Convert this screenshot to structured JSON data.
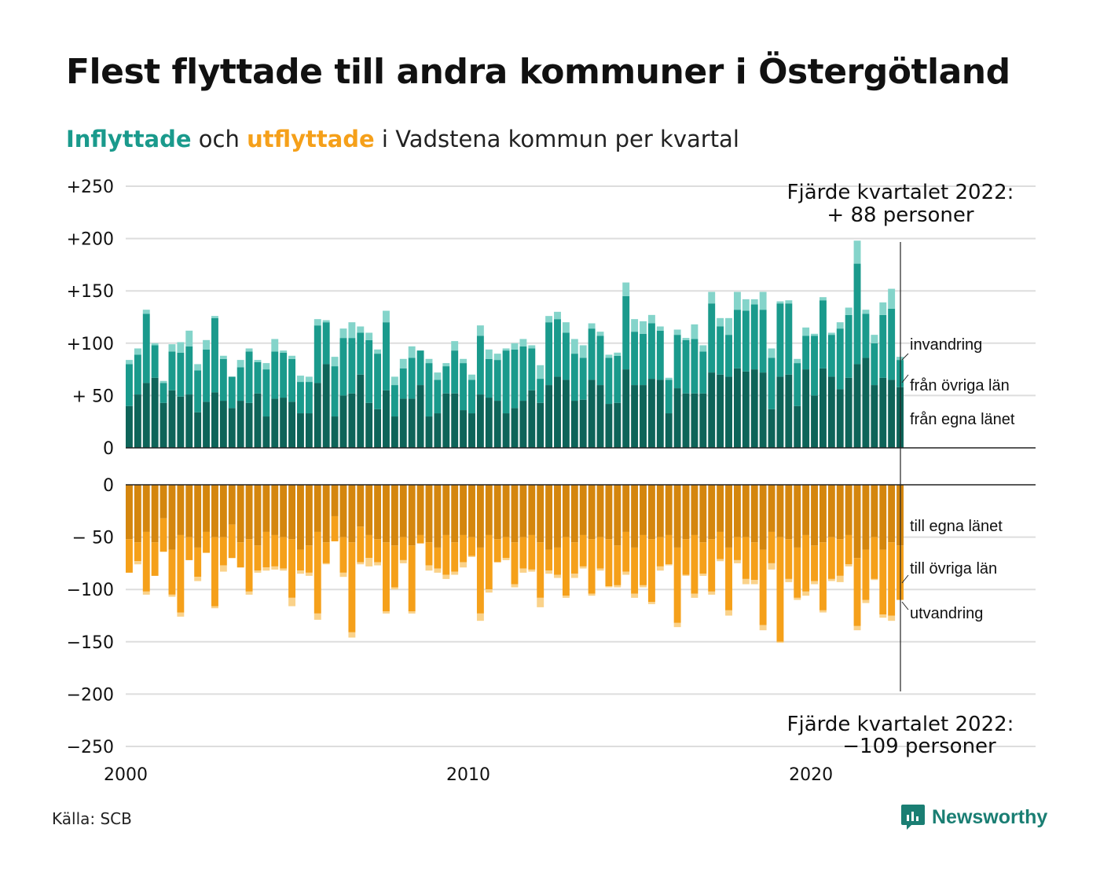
{
  "header": {
    "title": "Flest flyttade till andra kommuner i Östergötland",
    "subtitle_in": "Inflyttade",
    "subtitle_mid": " och ",
    "subtitle_out": "utflyttade",
    "subtitle_rest": " i Vadstena kommun per kvartal"
  },
  "footer": {
    "source": "Källa: SCB",
    "brand": "Newsworthy"
  },
  "colors": {
    "in_own": "#0e6459",
    "in_other": "#1a9a8c",
    "in_immigration": "#84d4ca",
    "out_own": "#d4860e",
    "out_other": "#f5a01a",
    "out_emigration": "#fad28a",
    "grid": "#dddddd",
    "brand": "#1a7e73"
  },
  "chart_data": {
    "type": "bar",
    "stacked": true,
    "x_ticks": [
      "2000",
      "2010",
      "2020"
    ],
    "x_tick_years": [
      2000,
      2010,
      2020
    ],
    "top_panel": {
      "y_ticks": [
        0,
        50,
        100,
        150,
        200,
        250
      ],
      "y_tick_labels": [
        "0",
        "+ 50",
        "+100",
        "+150",
        "+200",
        "+250"
      ],
      "ylim": [
        0,
        250
      ],
      "series": [
        {
          "name": "från egna länet",
          "values": [
            40,
            51,
            62,
            67,
            43,
            55,
            49,
            51,
            34,
            44,
            53,
            45,
            38,
            45,
            43,
            52,
            30,
            47,
            48,
            44,
            33,
            33,
            62,
            80,
            30,
            50,
            52,
            70,
            43,
            37,
            55,
            30,
            47,
            47,
            60,
            30,
            33,
            52,
            52,
            36,
            33,
            51,
            48,
            45,
            33,
            38,
            45,
            55,
            43,
            60,
            68,
            65,
            45,
            46,
            65,
            60,
            42,
            43,
            75,
            60,
            60,
            66,
            65,
            33,
            57,
            52,
            52,
            52,
            72,
            70,
            68,
            76,
            73,
            75,
            72,
            37,
            68,
            70,
            40,
            75,
            50,
            76,
            68,
            56,
            67,
            80,
            86,
            60,
            67,
            65,
            58
          ]
        },
        {
          "name": "från övriga län",
          "values": [
            40,
            38,
            66,
            31,
            19,
            37,
            42,
            46,
            40,
            50,
            71,
            40,
            30,
            32,
            49,
            30,
            45,
            45,
            43,
            41,
            30,
            30,
            55,
            40,
            48,
            55,
            53,
            40,
            60,
            53,
            65,
            30,
            29,
            39,
            33,
            51,
            32,
            26,
            41,
            45,
            32,
            56,
            37,
            39,
            60,
            56,
            52,
            40,
            23,
            60,
            55,
            45,
            45,
            40,
            49,
            47,
            44,
            45,
            70,
            51,
            49,
            53,
            47,
            32,
            51,
            51,
            52,
            40,
            66,
            46,
            40,
            56,
            58,
            62,
            60,
            49,
            70,
            68,
            41,
            32,
            57,
            65,
            40,
            58,
            60,
            96,
            42,
            40,
            60,
            68,
            26
          ]
        },
        {
          "name": "invandring",
          "values": [
            4,
            6,
            4,
            2,
            2,
            7,
            10,
            15,
            6,
            9,
            2,
            3,
            0,
            7,
            3,
            2,
            6,
            12,
            2,
            3,
            6,
            5,
            6,
            2,
            9,
            9,
            15,
            6,
            7,
            4,
            11,
            8,
            9,
            11,
            0,
            4,
            7,
            3,
            9,
            4,
            5,
            10,
            9,
            6,
            2,
            6,
            7,
            3,
            13,
            6,
            7,
            10,
            14,
            12,
            5,
            4,
            3,
            3,
            13,
            12,
            12,
            8,
            4,
            2,
            5,
            2,
            14,
            6,
            11,
            8,
            16,
            17,
            11,
            5,
            17,
            9,
            2,
            3,
            4,
            8,
            2,
            3,
            2,
            6,
            7,
            22,
            4,
            8,
            12,
            19,
            3
          ]
        }
      ]
    },
    "bottom_panel": {
      "y_ticks": [
        0,
        -50,
        -100,
        -150,
        -200,
        -250
      ],
      "y_tick_labels": [
        "0",
        "− 50",
        "−100",
        "−150",
        "−200",
        "−250"
      ],
      "ylim": [
        -250,
        0
      ],
      "series": [
        {
          "name": "till egna länet",
          "values": [
            -52,
            -55,
            -45,
            -55,
            -32,
            -62,
            -48,
            -50,
            -60,
            -45,
            -50,
            -50,
            -38,
            -55,
            -52,
            -58,
            -45,
            -48,
            -50,
            -52,
            -62,
            -58,
            -45,
            -55,
            -30,
            -50,
            -55,
            -40,
            -48,
            -52,
            -55,
            -58,
            -50,
            -58,
            -48,
            -55,
            -60,
            -48,
            -55,
            -48,
            -50,
            -60,
            -48,
            -52,
            -50,
            -55,
            -50,
            -48,
            -55,
            -62,
            -60,
            -50,
            -55,
            -48,
            -52,
            -50,
            -52,
            -58,
            -45,
            -60,
            -48,
            -52,
            -50,
            -48,
            -60,
            -52,
            -48,
            -55,
            -52,
            -45,
            -60,
            -50,
            -50,
            -55,
            -62,
            -45,
            -50,
            -52,
            -60,
            -48,
            -58,
            -55,
            -50,
            -52,
            -48,
            -70,
            -62,
            -50,
            -62,
            -55,
            -58
          ]
        },
        {
          "name": "till övriga län",
          "values": [
            -32,
            -18,
            -57,
            -32,
            -32,
            -43,
            -74,
            -22,
            -28,
            -20,
            -66,
            -27,
            -32,
            -24,
            -50,
            -24,
            -34,
            -30,
            -30,
            -56,
            -20,
            -26,
            -78,
            -20,
            -24,
            -34,
            -86,
            -34,
            -22,
            -22,
            -66,
            -40,
            -22,
            -63,
            -8,
            -22,
            -20,
            -38,
            -28,
            -26,
            -18,
            -63,
            -52,
            -22,
            -20,
            -40,
            -30,
            -33,
            -53,
            -20,
            -26,
            -56,
            -30,
            -30,
            -52,
            -30,
            -45,
            -38,
            -38,
            -44,
            -48,
            -60,
            -28,
            -28,
            -72,
            -34,
            -56,
            -30,
            -50,
            -26,
            -60,
            -22,
            -40,
            -36,
            -72,
            -30,
            -100,
            -38,
            -48,
            -54,
            -34,
            -65,
            -40,
            -35,
            -28,
            -65,
            -48,
            -40,
            -62,
            -70,
            -52
          ]
        },
        {
          "name": "utvandring",
          "values": [
            0,
            -3,
            -3,
            0,
            0,
            -2,
            -4,
            0,
            -4,
            0,
            -2,
            -6,
            0,
            0,
            -3,
            -2,
            -3,
            -3,
            -2,
            -8,
            -3,
            -3,
            -6,
            -1,
            0,
            -4,
            -5,
            -2,
            -8,
            -3,
            -2,
            -2,
            -3,
            -2,
            0,
            -5,
            -4,
            -4,
            -3,
            -5,
            -1,
            -7,
            -3,
            0,
            -2,
            -3,
            -4,
            -2,
            -9,
            -3,
            -3,
            -2,
            -4,
            -2,
            -2,
            -2,
            -1,
            -2,
            -3,
            -4,
            -2,
            -2,
            -4,
            -1,
            -4,
            -1,
            -4,
            -2,
            -3,
            -2,
            -5,
            -3,
            -5,
            -4,
            -5,
            -6,
            -1,
            -3,
            -2,
            -4,
            -3,
            -2,
            -2,
            -6,
            -2,
            -4,
            -3,
            -1,
            -3,
            -5,
            0
          ]
        }
      ]
    },
    "annotation_top": [
      "Fjärde kvartalet 2022:",
      "+ 88 personer"
    ],
    "annotation_bottom": [
      "Fjärde kvartalet 2022:",
      "−109 personer"
    ],
    "legend_top": [
      "invandring",
      "från övriga län",
      "från egna länet"
    ],
    "legend_bottom": [
      "till egna länet",
      "till övriga län",
      "utvandring"
    ]
  }
}
